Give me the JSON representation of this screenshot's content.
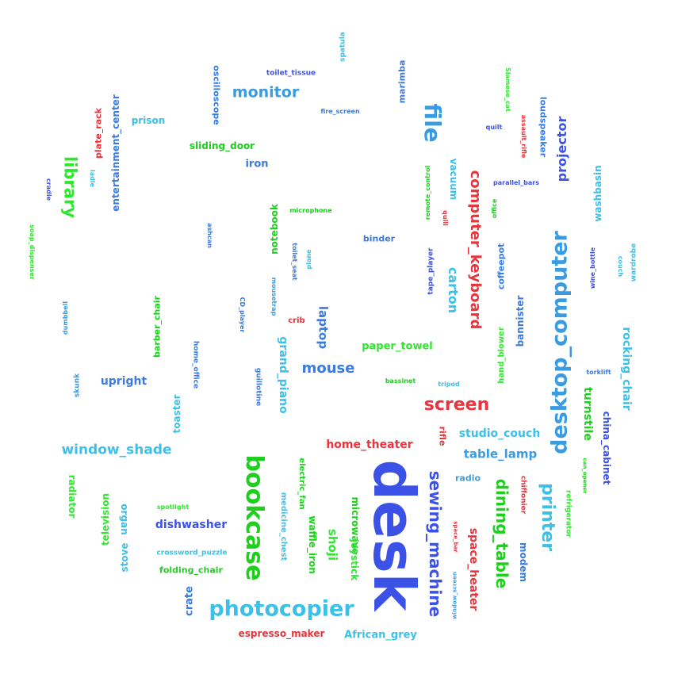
{
  "words": [
    {
      "text": "desk",
      "color": "#3c52e6"
    },
    {
      "text": "bookcase",
      "color": "#1ecf1e"
    },
    {
      "text": "desktop_computer",
      "color": "#3a9be0"
    },
    {
      "text": "photocopier",
      "color": "#3cc0e8"
    },
    {
      "text": "sewing_machine",
      "color": "#3c52e6"
    },
    {
      "text": "dining_table",
      "color": "#1ecf1e"
    },
    {
      "text": "screen",
      "color": "#e8343c"
    },
    {
      "text": "printer",
      "color": "#3cc0e8"
    },
    {
      "text": "file",
      "color": "#3a9be0"
    },
    {
      "text": "computer_keyboard",
      "color": "#e8343c"
    },
    {
      "text": "library",
      "color": "#2ee82e"
    },
    {
      "text": "window_shade",
      "color": "#3cc0e8"
    },
    {
      "text": "monitor",
      "color": "#3a9be0"
    },
    {
      "text": "mouse",
      "color": "#3a7be0"
    },
    {
      "text": "projector",
      "color": "#3c52e6"
    },
    {
      "text": "carton",
      "color": "#3cc0e8"
    },
    {
      "text": "rocking_chair",
      "color": "#3cc0e8"
    },
    {
      "text": "turnstile",
      "color": "#1ecf1e"
    },
    {
      "text": "grand_piano",
      "color": "#3cc0e8"
    },
    {
      "text": "shoji",
      "color": "#2ee82e"
    },
    {
      "text": "space_heater",
      "color": "#e8343c"
    },
    {
      "text": "table_lamp",
      "color": "#3a9be0"
    },
    {
      "text": "studio_couch",
      "color": "#3cc0e8"
    },
    {
      "text": "home_theater",
      "color": "#e8343c"
    },
    {
      "text": "paper_towel",
      "color": "#2ee82e"
    },
    {
      "text": "upright",
      "color": "#3a7be0"
    },
    {
      "text": "laptop",
      "color": "#3a7be0"
    },
    {
      "text": "dishwasher",
      "color": "#3c52e6"
    },
    {
      "text": "espresso_maker",
      "color": "#e8343c"
    },
    {
      "text": "African_grey",
      "color": "#3cc0e8"
    },
    {
      "text": "crate",
      "color": "#3a7be0"
    },
    {
      "text": "waffle_iron",
      "color": "#1ecf1e"
    },
    {
      "text": "microwave",
      "color": "#1ecf1e"
    },
    {
      "text": "joystick",
      "color": "#2ee82e"
    },
    {
      "text": "television",
      "color": "#2ee82e"
    },
    {
      "text": "modem",
      "color": "#3a7be0"
    },
    {
      "text": "china_cabinet",
      "color": "#3c52e6"
    },
    {
      "text": "prison",
      "color": "#3cc0e8"
    },
    {
      "text": "iron",
      "color": "#3a7be0"
    },
    {
      "text": "sliding_door",
      "color": "#1ecf1e"
    },
    {
      "text": "entertainment_center",
      "color": "#3a7be0"
    },
    {
      "text": "oscilloscope",
      "color": "#3a7be0"
    },
    {
      "text": "marimba",
      "color": "#3a7be0"
    },
    {
      "text": "vacuum",
      "color": "#3cc0e8"
    },
    {
      "text": "loudspeaker",
      "color": "#3a7be0"
    },
    {
      "text": "washbasin",
      "color": "#3cc0e8"
    },
    {
      "text": "notebook",
      "color": "#1ecf1e"
    },
    {
      "text": "barber_chair",
      "color": "#1ecf1e"
    },
    {
      "text": "bannister",
      "color": "#3a7be0"
    },
    {
      "text": "coffeepot",
      "color": "#3a7be0"
    },
    {
      "text": "toaster",
      "color": "#3cc0e8"
    },
    {
      "text": "radiator",
      "color": "#2ee82e"
    },
    {
      "text": "stove",
      "color": "#3cc0e8"
    },
    {
      "text": "organ",
      "color": "#3cc0e8"
    },
    {
      "text": "folding_chair",
      "color": "#1ecf1e"
    },
    {
      "text": "radio",
      "color": "#3a9be0"
    },
    {
      "text": "binder",
      "color": "#3a7be0"
    },
    {
      "text": "rifle",
      "color": "#e8343c"
    },
    {
      "text": "crib",
      "color": "#e8343c"
    },
    {
      "text": "plate_rack",
      "color": "#e8343c"
    },
    {
      "text": "hand_blower",
      "color": "#2ee82e"
    },
    {
      "text": "medicine_chest",
      "color": "#3cc0e8"
    },
    {
      "text": "electric_fan",
      "color": "#1ecf1e"
    },
    {
      "text": "home_office",
      "color": "#3a7be0"
    },
    {
      "text": "guillotine",
      "color": "#3a7be0"
    },
    {
      "text": "tape_player",
      "color": "#3c52e6"
    },
    {
      "text": "wardrobe",
      "color": "#3cc0e8"
    },
    {
      "text": "crossword_puzzle",
      "color": "#3cc0e8"
    },
    {
      "text": "chiffonier",
      "color": "#e8343c"
    },
    {
      "text": "refrigerator",
      "color": "#2ee82e"
    },
    {
      "text": "toilet_tissue",
      "color": "#3c52e6"
    },
    {
      "text": "spatula",
      "color": "#3cc0e8"
    },
    {
      "text": "fire_screen",
      "color": "#3a7be0"
    },
    {
      "text": "Siamese_cat",
      "color": "#2ee82e"
    },
    {
      "text": "quilt",
      "color": "#3c52e6"
    },
    {
      "text": "assault_rifle",
      "color": "#e8343c"
    },
    {
      "text": "parallel_bars",
      "color": "#3c52e6"
    },
    {
      "text": "remote_control",
      "color": "#1ecf1e"
    },
    {
      "text": "quill",
      "color": "#e8343c"
    },
    {
      "text": "office",
      "color": "#1ecf1e"
    },
    {
      "text": "microphone",
      "color": "#1ecf1e"
    },
    {
      "text": "ladle",
      "color": "#3cc0e8"
    },
    {
      "text": "cradle",
      "color": "#3c52e6"
    },
    {
      "text": "soap_dispenser",
      "color": "#2ee82e"
    },
    {
      "text": "ashcan",
      "color": "#3a7be0"
    },
    {
      "text": "toilet_seat",
      "color": "#3a7be0"
    },
    {
      "text": "plane",
      "color": "#3cc0e8"
    },
    {
      "text": "wine_bottle",
      "color": "#3c52e6"
    },
    {
      "text": "couch",
      "color": "#3cc0e8"
    },
    {
      "text": "dumbbell",
      "color": "#3a9be0"
    },
    {
      "text": "mousetrap",
      "color": "#3a9be0"
    },
    {
      "text": "CD_player",
      "color": "#3a7be0"
    },
    {
      "text": "skunk",
      "color": "#3a9be0"
    },
    {
      "text": "bassinet",
      "color": "#1ecf1e"
    },
    {
      "text": "tripod",
      "color": "#3cc0e8"
    },
    {
      "text": "torklift",
      "color": "#3a7be0"
    },
    {
      "text": "spotlight",
      "color": "#2ee82e"
    },
    {
      "text": "can_opener",
      "color": "#1ecf1e"
    },
    {
      "text": "space_bar",
      "color": "#e8343c"
    },
    {
      "text": "window_screen",
      "color": "#3a9be0"
    }
  ]
}
